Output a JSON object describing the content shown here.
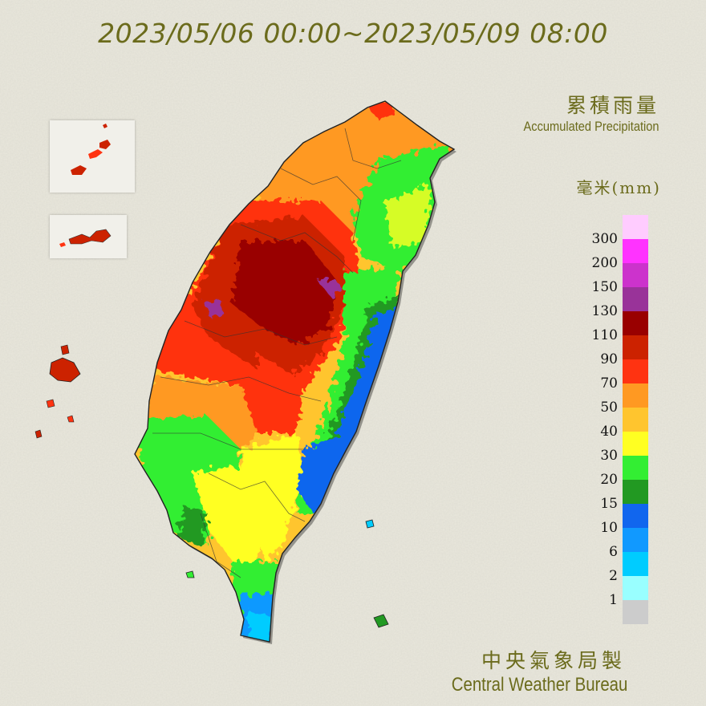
{
  "header": {
    "date_range": "2023/05/06 00:00~2023/05/09 08:00"
  },
  "title": {
    "zh": "累積雨量",
    "en": "Accumulated Precipitation",
    "unit": "毫米(mm)"
  },
  "legend": {
    "levels": [
      {
        "label": "300",
        "color": "#ffccff"
      },
      {
        "label": "200",
        "color": "#ff33ff"
      },
      {
        "label": "150",
        "color": "#cc33cc"
      },
      {
        "label": "130",
        "color": "#993399"
      },
      {
        "label": "110",
        "color": "#990000"
      },
      {
        "label": "90",
        "color": "#cc2200"
      },
      {
        "label": "70",
        "color": "#ff3311"
      },
      {
        "label": "50",
        "color": "#ff9922"
      },
      {
        "label": "40",
        "color": "#ffc52e"
      },
      {
        "label": "30",
        "color": "#ffff22"
      },
      {
        "label": "20",
        "color": "#33ee33"
      },
      {
        "label": "15",
        "color": "#229922"
      },
      {
        "label": "10",
        "color": "#1166ee"
      },
      {
        "label": "6",
        "color": "#1199ff"
      },
      {
        "label": "2",
        "color": "#00ccff"
      },
      {
        "label": "1",
        "color": "#99ffff"
      },
      {
        "label": "",
        "color": "#cccccc"
      }
    ]
  },
  "credit": {
    "zh": "中央氣象局製",
    "en": "Central Weather Bureau"
  },
  "colors": {
    "text": "#6b6b1c",
    "background": "#e9e7dc"
  }
}
